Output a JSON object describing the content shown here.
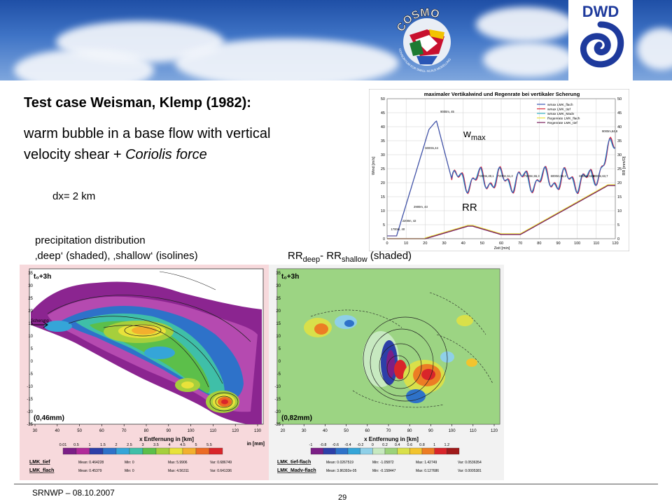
{
  "header": {
    "cosmo_logo_text": "COSMO",
    "cosmo_logo_subtext": "CONSORTIUM FOR SMALL-SCALE MODELLING",
    "dwd_logo_text": "DWD"
  },
  "slide": {
    "title": "Test case Weisman, Klemp (1982):",
    "subtitle_line1": "warm bubble in a base flow with vertical",
    "subtitle_line2_plain": "velocity shear + ",
    "subtitle_line2_italic": "Coriolis force",
    "resolution": "dx= 2 km",
    "precip_line1": "precipitation distribution",
    "precip_line2": "‚deep‘ (shaded), ‚shallow‘ (isolines)",
    "rr_main1": "RR",
    "rr_sub1": "deep",
    "rr_main2": "- RR",
    "rr_sub2": "shallow",
    "rr_tail": " (shaded)",
    "wmax_main": "w",
    "wmax_sub": "max",
    "rr_label": "RR"
  },
  "timeseries_chart": {
    "title": "maximaler Vertikalwind und Regenrate bei vertikaler Scherung",
    "ylabel_left": "Wind [m/s]",
    "ylabel_right": "RR [mm/D]",
    "xlabel": "Zeit [min]",
    "x_ticks": [
      "0",
      "10",
      "20",
      "30",
      "40",
      "50",
      "60",
      "70",
      "80",
      "90",
      "100",
      "110",
      "120"
    ],
    "y_ticks_left": [
      "0",
      "5",
      "10",
      "15",
      "20",
      "25",
      "30",
      "35",
      "40",
      "45",
      "50"
    ],
    "y_ticks_right": [
      "0",
      "5",
      "10",
      "15",
      "20",
      "25",
      "30",
      "35",
      "40",
      "45",
      "50"
    ],
    "legend": [
      "wmax LMK_flach",
      "wmax LMK_tief",
      "wmax LMK_Madv",
      "Regenrate LMK_flach",
      "Regenrate LMK_tief"
    ],
    "annotations": [
      "9000m, 45",
      "6000m,44",
      "2900m, 43",
      "2200m, 42",
      "1700m, 40",
      "7200m,49,1",
      "7200m,51,2",
      "7200m,55,3",
      "6000m,56,4",
      "6000m,62,4",
      "5000m,63,7",
      "9000m,64,8"
    ],
    "colors": {
      "wmax_flach": "#3b57b5",
      "wmax_tief": "#d8283a",
      "wmax_madv": "#39b3c4",
      "regen_flach": "#e8e23a",
      "regen_tief": "#7a1f5e"
    }
  },
  "map_left": {
    "time_label": "t₀+3h",
    "value_label": "(0,46mm)",
    "xlabel": "x Entfernung in [km]",
    "shear_label": "Scherung",
    "x_ticks": [
      "30",
      "40",
      "50",
      "60",
      "70",
      "80",
      "90",
      "100",
      "110",
      "120",
      "130"
    ],
    "y_ticks": [
      "35",
      "30",
      "25",
      "20",
      "15",
      "10",
      "5",
      "0",
      "-5",
      "-10",
      "-15",
      "-20",
      "-25"
    ],
    "colorbar_ticks": [
      "0.01",
      "0.5",
      "1",
      "1.5",
      "2",
      "2.5",
      "3",
      "3.5",
      "4",
      "4.5",
      "5",
      "5.5"
    ],
    "colorbar_unit": "in [mm]",
    "colorbar_colors": [
      "#7b1f86",
      "#b12a9a",
      "#2d3fa8",
      "#2e72c9",
      "#35a5d8",
      "#3fbfa8",
      "#5cbf4a",
      "#a6cf3c",
      "#e8e23a",
      "#f2b02e",
      "#ec6b24",
      "#d9252a"
    ],
    "stats": [
      {
        "name": "LMK_tief",
        "mean": "Mean: 0.464228",
        "min": "Min: 0",
        "max": "Max: 5.9906",
        "var": "Var: 0.686749"
      },
      {
        "name": "LMK_flach",
        "mean": "Mean: 0.45379",
        "min": "Min: 0",
        "max": "Max: 4.56311",
        "var": "Var: 0.641336"
      }
    ]
  },
  "map_right": {
    "time_label": "t₀+3h",
    "value_label": "(0,82mm)",
    "xlabel": "x Entfernung in [km]",
    "x_ticks": [
      "20",
      "30",
      "40",
      "50",
      "60",
      "70",
      "80",
      "90",
      "100",
      "110",
      "120"
    ],
    "y_ticks": [
      "35",
      "30",
      "25",
      "20",
      "15",
      "10",
      "5",
      "0",
      "-5",
      "-10",
      "-15",
      "-20",
      "-25"
    ],
    "colorbar_ticks": [
      "-1",
      "-0.8",
      "-0.6",
      "-0.4",
      "-0.2",
      "0",
      "0.2",
      "0.4",
      "0.6",
      "0.8",
      "1",
      "1.2"
    ],
    "colorbar_colors": [
      "#7b1f86",
      "#2d3fa8",
      "#2e72c9",
      "#35a5d8",
      "#8fd0e8",
      "#c7e9c0",
      "#9cd27a",
      "#d9e04a",
      "#f2c42e",
      "#ec7d24",
      "#d9252a",
      "#a01a1a"
    ],
    "stats": [
      {
        "name": "LMK_tief-flach",
        "mean": "Mean: 0.0267519",
        "min": "Min: -1.05872",
        "max": "Max: 1.42749",
        "var": "Var: 0.0536354"
      },
      {
        "name": "LMK_Madv-flach",
        "mean": "Mean: 3.86392e-05",
        "min": "Min: -0.158447",
        "max": "Max: 0.127686",
        "var": "Var: 0.0005381"
      }
    ]
  },
  "footer": {
    "left": "SRNWP   – 08.10.2007",
    "page": "29"
  }
}
